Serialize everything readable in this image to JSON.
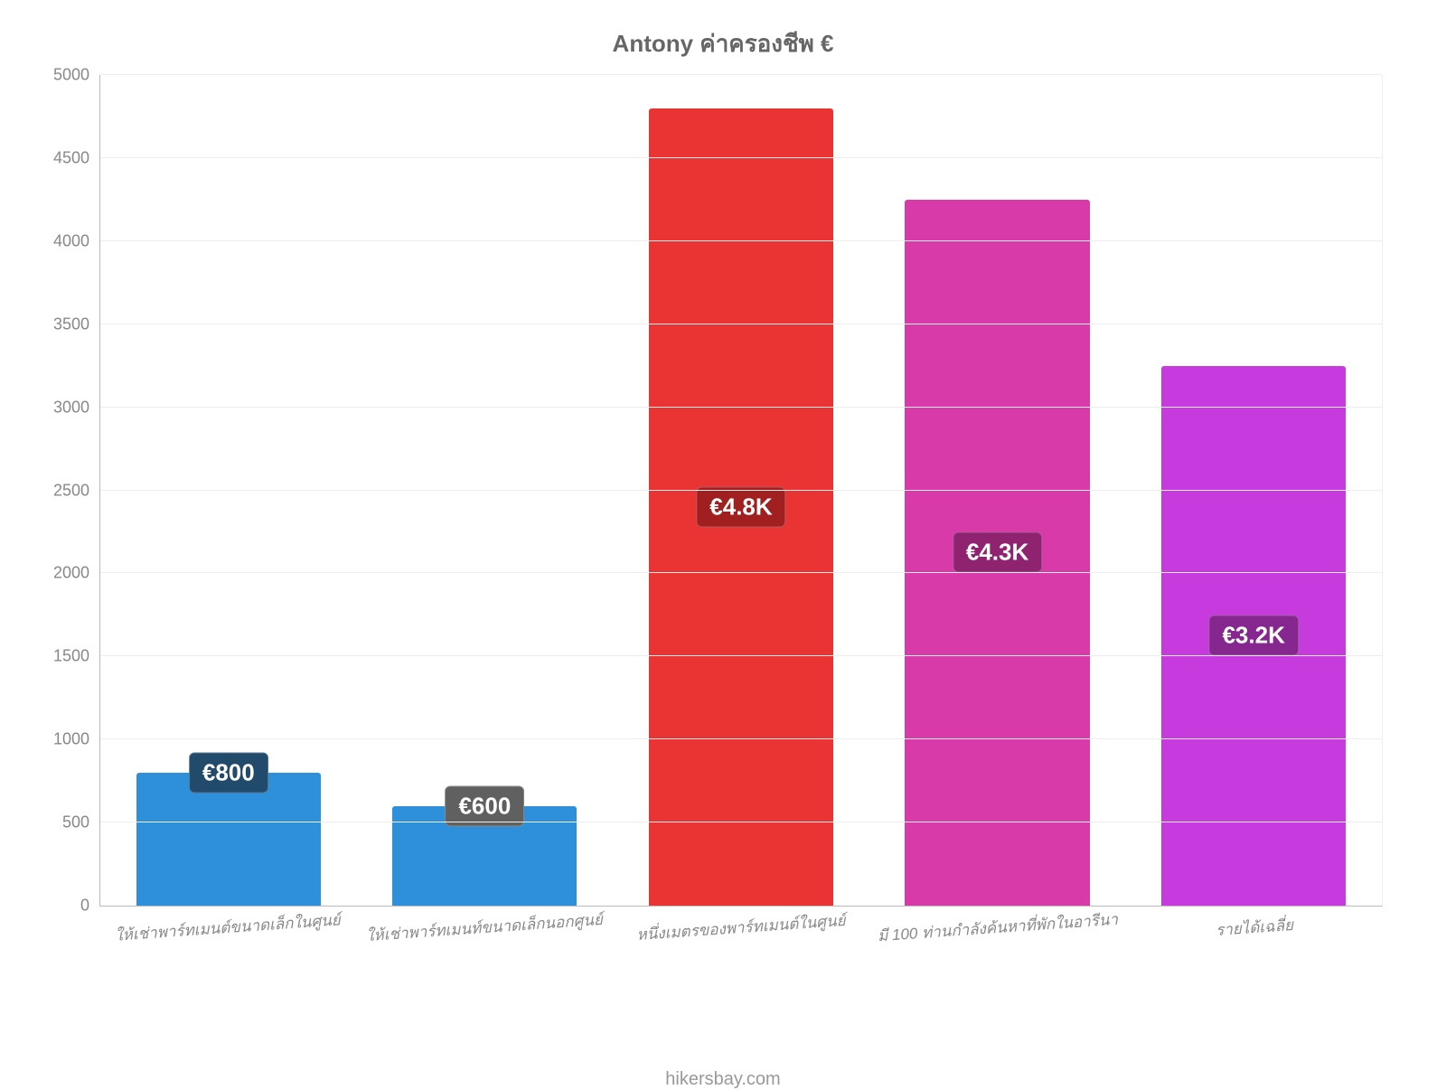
{
  "chart": {
    "type": "bar",
    "title": "Antony ค่าครองชีพ €",
    "title_fontsize": 26,
    "title_color": "#666666",
    "background_color": "#ffffff",
    "grid_color": "#eeeeee",
    "axis_color": "#bbbbbb",
    "tick_label_color": "#888888",
    "tick_label_fontsize": 18,
    "xtick_label_fontsize": 17,
    "xtick_label_style": "italic",
    "xtick_rotation_deg": -4,
    "ylim": [
      0,
      5000
    ],
    "ytick_step": 500,
    "yticks": [
      0,
      500,
      1000,
      1500,
      2000,
      2500,
      3000,
      3500,
      4000,
      4500,
      5000
    ],
    "bar_width_pct": 72,
    "bar_label_fontsize": 26,
    "categories": [
      "ให้เช่าพาร์ทเมนต์ขนาดเล็กในศูนย์",
      "ให้เช่าพาร์ทเมนท์ขนาดเล็กนอกศูนย์",
      "หนึ่งเมตรของพาร์ทเมนต์ในศูนย์",
      "มี 100 ท่านกำลังค้นหาที่พักในอารีนา",
      "รายได้เฉลี่ย"
    ],
    "values": [
      800,
      600,
      4800,
      4250,
      3250
    ],
    "value_labels": [
      "€800",
      "€600",
      "€4.8K",
      "€4.3K",
      "€3.2K"
    ],
    "bar_colors": [
      "#2e8fda",
      "#2e8fda",
      "#ea3434",
      "#d83aaa",
      "#c73add"
    ],
    "label_bg_colors": [
      "#214a6b",
      "#606060",
      "#a02020",
      "#8f2370",
      "#85278f"
    ],
    "label_y_offsets": [
      160,
      150,
      0,
      0,
      0
    ]
  },
  "footer": {
    "text": "hikersbay.com",
    "color": "#999999",
    "fontsize": 20
  }
}
